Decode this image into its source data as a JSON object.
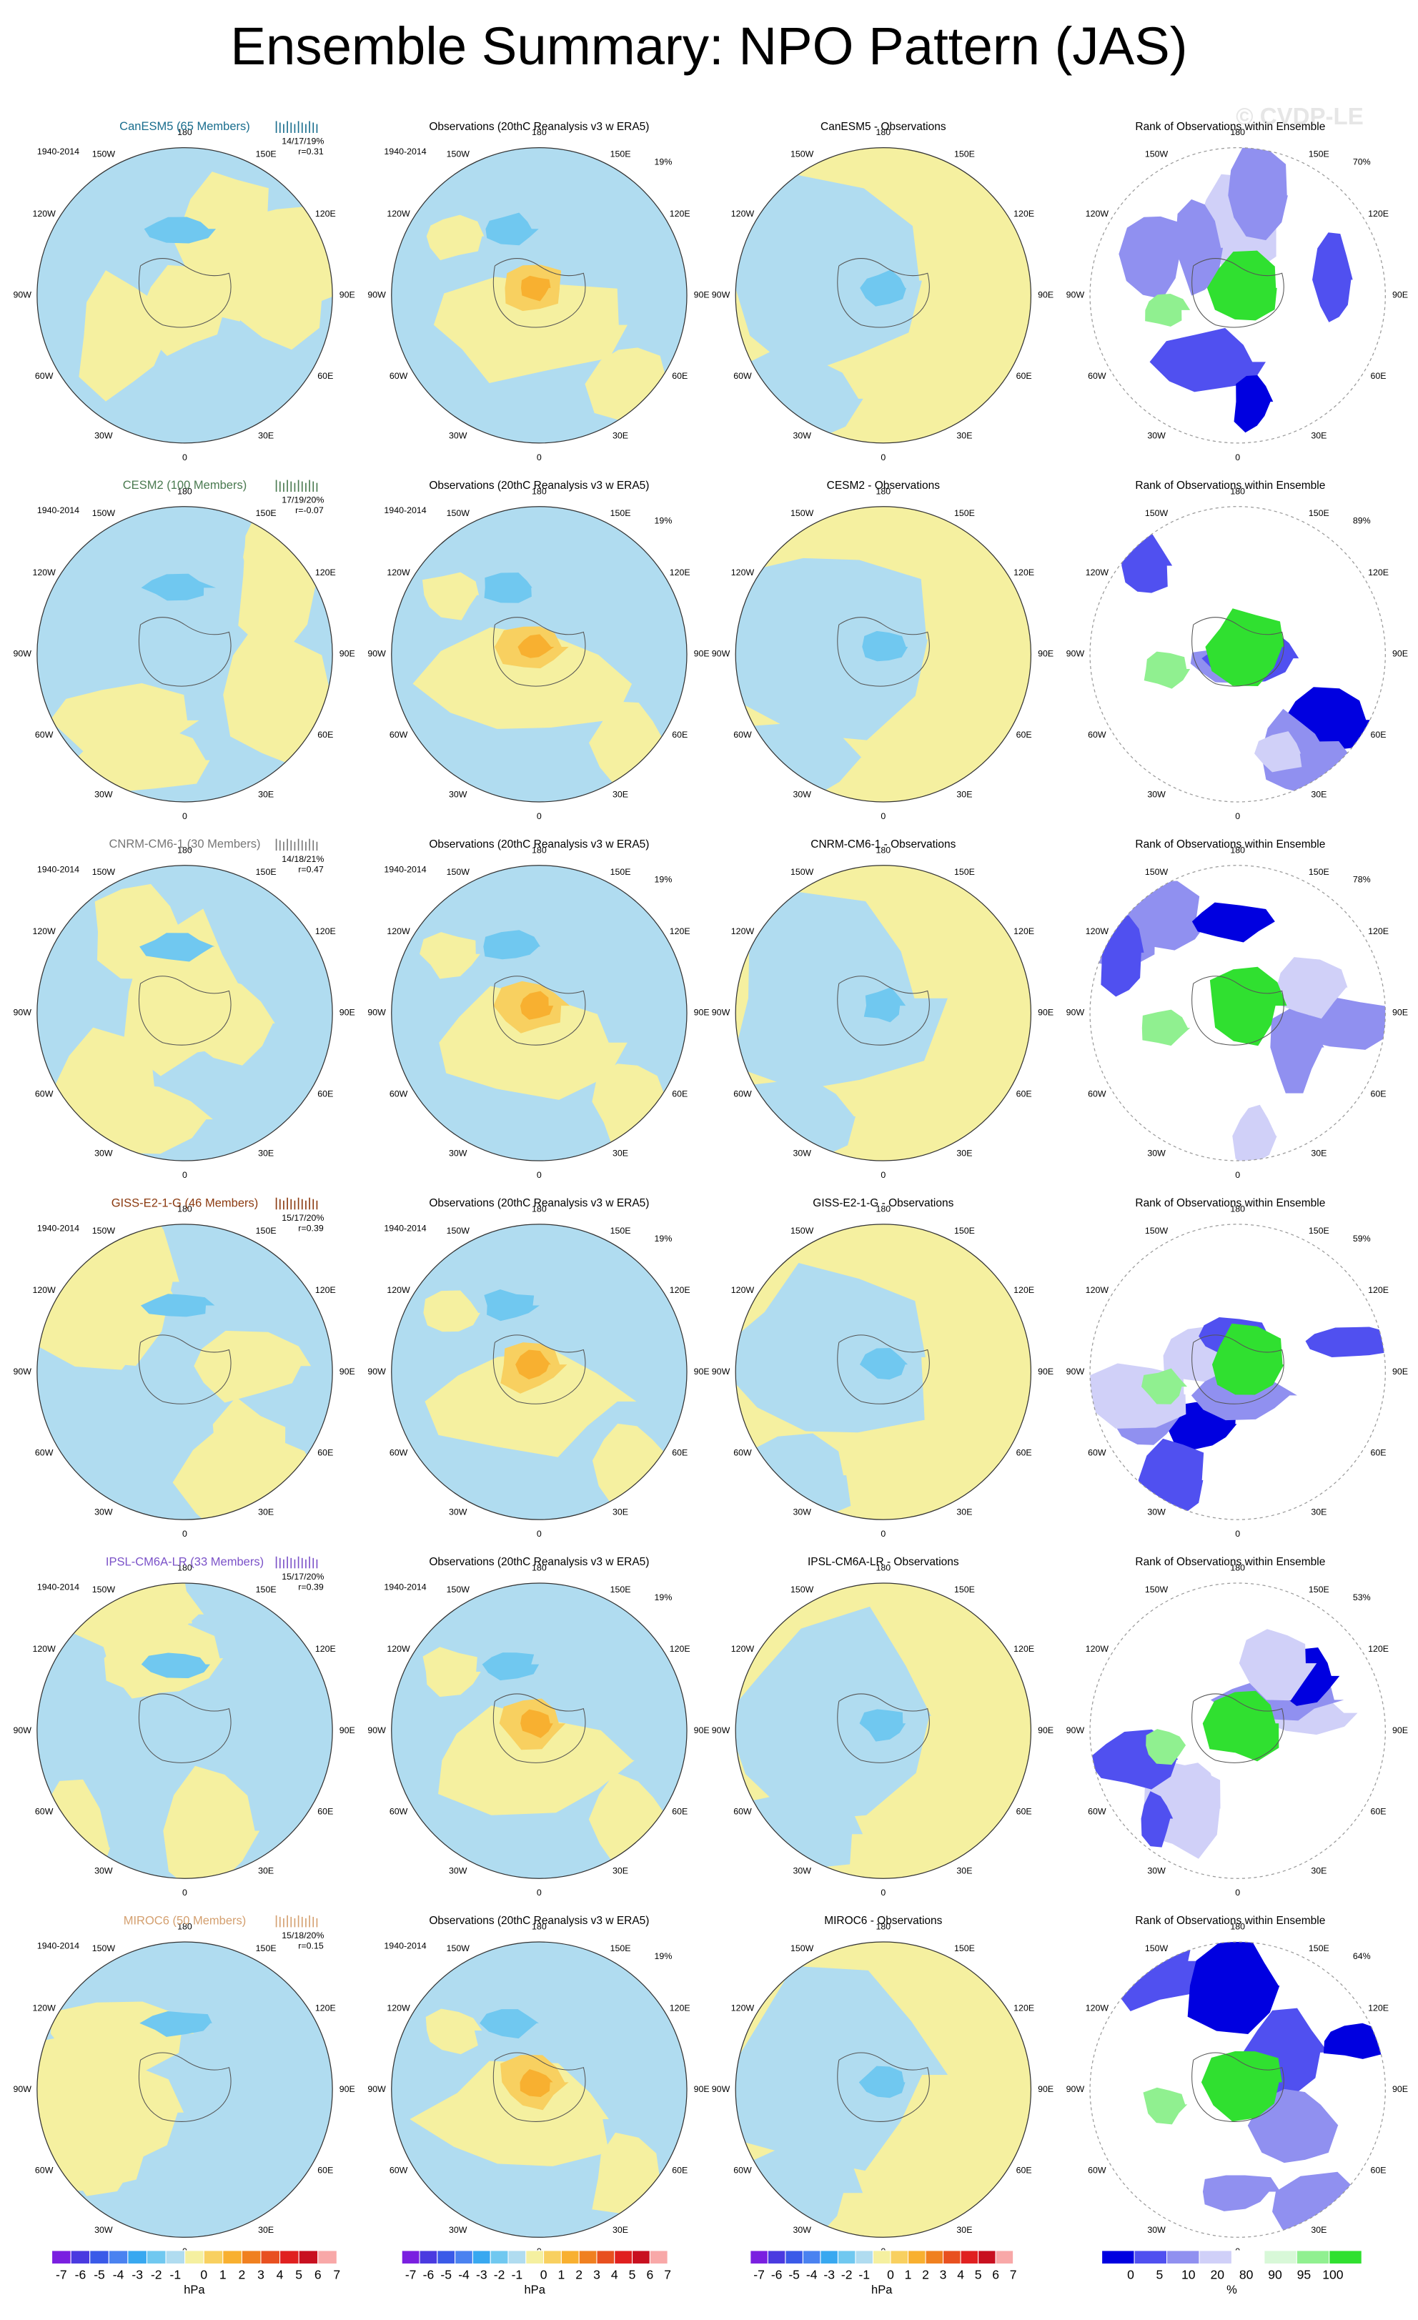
{
  "title": "Ensemble Summary: NPO Pattern (JAS)",
  "watermark": "© CVDP-LE",
  "period": "1940-2014",
  "observations_title": "Observations (20thC Reanalysis v3 w ERA5)",
  "observations_pct": "19%",
  "rank_title": "Rank of Observations within Ensemble",
  "longitudes": [
    "180",
    "150W",
    "150E",
    "120W",
    "120E",
    "90W",
    "90E",
    "60W",
    "60E",
    "30W",
    "30E",
    "0"
  ],
  "rows": [
    {
      "model": "CanESM5 (65 Members)",
      "color": "#1a6e8e",
      "stats": "14/17/19%",
      "r": "r=0.31",
      "difference_title": "CanESM5 - Observations",
      "rank_pct": "70%"
    },
    {
      "model": "CESM2 (100 Members)",
      "color": "#4a7a50",
      "stats": "17/19/20%",
      "r": "r=-0.07",
      "difference_title": "CESM2 - Observations",
      "rank_pct": "89%"
    },
    {
      "model": "CNRM-CM6-1 (30 Members)",
      "color": "#777777",
      "stats": "14/18/21%",
      "r": "r=0.47",
      "difference_title": "CNRM-CM6-1 - Observations",
      "rank_pct": "78%"
    },
    {
      "model": "GISS-E2-1-G (46 Members)",
      "color": "#8b3a10",
      "stats": "15/17/20%",
      "r": "r=0.39",
      "difference_title": "GISS-E2-1-G - Observations",
      "rank_pct": "59%"
    },
    {
      "model": "IPSL-CM6A-LR (33 Members)",
      "color": "#7b52c8",
      "stats": "15/17/20%",
      "r": "r=0.39",
      "difference_title": "IPSL-CM6A-LR - Observations",
      "rank_pct": "53%"
    },
    {
      "model": "MIROC6 (50 Members)",
      "color": "#d4a070",
      "stats": "15/18/20%",
      "r": "r=0.15",
      "difference_title": "MIROC6 - Observations",
      "rank_pct": "64%"
    }
  ],
  "hpa_colorbar": {
    "labels": [
      -7,
      -6,
      -5,
      -4,
      -3,
      -2,
      -1,
      0,
      1,
      2,
      3,
      4,
      5,
      6,
      7
    ],
    "unit": "hPa",
    "colors": [
      "#7a1fe0",
      "#4a3ae0",
      "#3a5ae8",
      "#4a82f0",
      "#38a8f0",
      "#70c8f0",
      "#b0dcf0",
      "#f5f0a0",
      "#f8d060",
      "#f8b030",
      "#f08020",
      "#e85020",
      "#e02020",
      "#c81020",
      "#f8a8a8"
    ]
  },
  "rank_colorbar": {
    "labels": [
      0,
      5,
      10,
      20,
      80,
      90,
      95,
      100
    ],
    "unit": "%",
    "colors": [
      "#0000e0",
      "#5050f0",
      "#9090f0",
      "#d0d0f8",
      "#ffffff",
      "#d8f8d8",
      "#90f090",
      "#30e030"
    ]
  }
}
